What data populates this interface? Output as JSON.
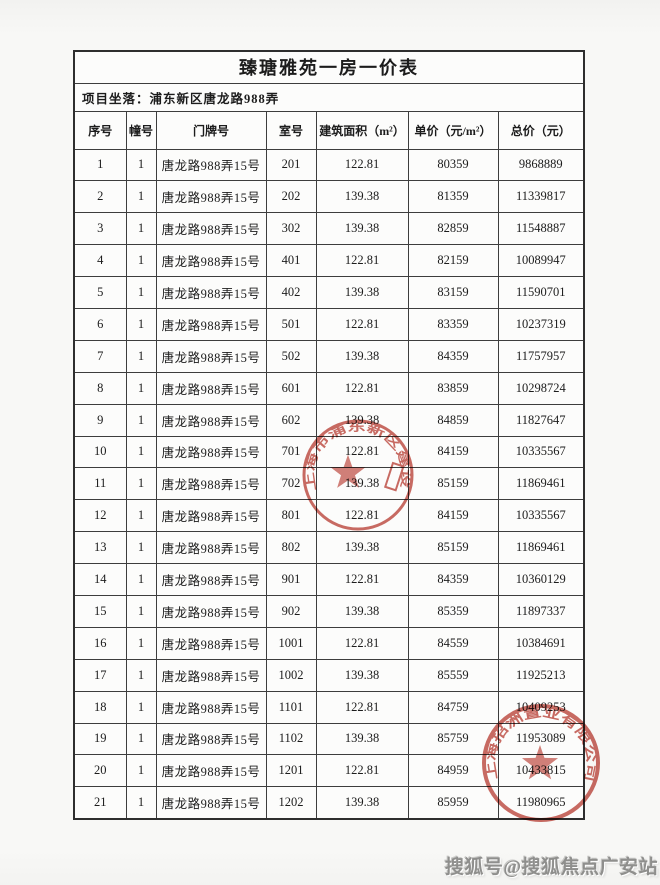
{
  "doc": {
    "title": "臻瑭雅苑一房一价表",
    "project_location": "项目坐落：浦东新区唐龙路988弄",
    "columns": [
      "序号",
      "幢号",
      "门牌号",
      "室号",
      "建筑面积（m²）",
      "单价（元/m²）",
      "总价（元）"
    ],
    "rows": [
      [
        "1",
        "1",
        "唐龙路988弄15号",
        "201",
        "122.81",
        "80359",
        "9868889"
      ],
      [
        "2",
        "1",
        "唐龙路988弄15号",
        "202",
        "139.38",
        "81359",
        "11339817"
      ],
      [
        "3",
        "1",
        "唐龙路988弄15号",
        "302",
        "139.38",
        "82859",
        "11548887"
      ],
      [
        "4",
        "1",
        "唐龙路988弄15号",
        "401",
        "122.81",
        "82159",
        "10089947"
      ],
      [
        "5",
        "1",
        "唐龙路988弄15号",
        "402",
        "139.38",
        "83159",
        "11590701"
      ],
      [
        "6",
        "1",
        "唐龙路988弄15号",
        "501",
        "122.81",
        "83359",
        "10237319"
      ],
      [
        "7",
        "1",
        "唐龙路988弄15号",
        "502",
        "139.38",
        "84359",
        "11757957"
      ],
      [
        "8",
        "1",
        "唐龙路988弄15号",
        "601",
        "122.81",
        "83859",
        "10298724"
      ],
      [
        "9",
        "1",
        "唐龙路988弄15号",
        "602",
        "139.38",
        "84859",
        "11827647"
      ],
      [
        "10",
        "1",
        "唐龙路988弄15号",
        "701",
        "122.81",
        "84159",
        "10335567"
      ],
      [
        "11",
        "1",
        "唐龙路988弄15号",
        "702",
        "139.38",
        "85159",
        "11869461"
      ],
      [
        "12",
        "1",
        "唐龙路988弄15号",
        "801",
        "122.81",
        "84159",
        "10335567"
      ],
      [
        "13",
        "1",
        "唐龙路988弄15号",
        "802",
        "139.38",
        "85159",
        "11869461"
      ],
      [
        "14",
        "1",
        "唐龙路988弄15号",
        "901",
        "122.81",
        "84359",
        "10360129"
      ],
      [
        "15",
        "1",
        "唐龙路988弄15号",
        "902",
        "139.38",
        "85359",
        "11897337"
      ],
      [
        "16",
        "1",
        "唐龙路988弄15号",
        "1001",
        "122.81",
        "84559",
        "10384691"
      ],
      [
        "17",
        "1",
        "唐龙路988弄15号",
        "1002",
        "139.38",
        "85559",
        "11925213"
      ],
      [
        "18",
        "1",
        "唐龙路988弄15号",
        "1101",
        "122.81",
        "84759",
        "10409253"
      ],
      [
        "19",
        "1",
        "唐龙路988弄15号",
        "1102",
        "139.38",
        "85759",
        "11953089"
      ],
      [
        "20",
        "1",
        "唐龙路988弄15号",
        "1201",
        "122.81",
        "84959",
        "10433815"
      ],
      [
        "21",
        "1",
        "唐龙路988弄15号",
        "1202",
        "139.38",
        "85959",
        "11980965"
      ]
    ],
    "seals": [
      {
        "text": "上海市浦东新区建设",
        "color": "#bf4a40"
      },
      {
        "text": "上海招洲置业有限公司",
        "color": "#bf4a40"
      }
    ],
    "watermark": "搜狐号@搜狐焦点广安站"
  }
}
